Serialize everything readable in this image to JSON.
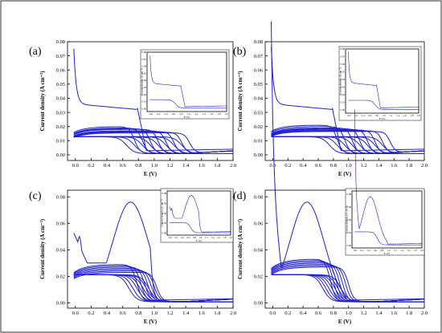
{
  "chart_data": [
    {
      "id": "a",
      "type": "line",
      "panel_label": "(a)",
      "xlabel": "E (V)",
      "ylabel": "Current density (A cm⁻²)",
      "xlim": [
        -0.1,
        2.0
      ],
      "ylim": [
        -0.004,
        0.08
      ],
      "x_ticks": [
        "0.0",
        "0.2",
        "0.4",
        "0.6",
        "0.8",
        "1.0",
        "1.2",
        "1.4",
        "1.6",
        "1.8",
        "2.0"
      ],
      "y_ticks": [
        "0.00",
        "0.01",
        "0.02",
        "0.03",
        "0.04",
        "0.05",
        "0.06",
        "0.07",
        "0.08"
      ],
      "drop_potentials": [
        0.75,
        0.85,
        0.95,
        1.05,
        1.15,
        1.25,
        1.35,
        1.45
      ],
      "plateaus": [
        0.019,
        0.018,
        0.0175,
        0.017,
        0.016,
        0.0155,
        0.015,
        0.0145
      ],
      "first_scan": {
        "peak_x": 0.85,
        "peak_y": 0.034,
        "start_y": 0.075
      },
      "inset": {
        "x_ticks": [
          "0.0",
          "0.2",
          "0.4",
          "0.6",
          "0.8",
          "1.0",
          "1.2",
          "1.4",
          "1.6",
          "1.8",
          "2.0"
        ],
        "y_ticks": [
          "0.00",
          "0.01",
          "0.02",
          "0.03",
          "0.04",
          "0.05",
          "0.06",
          "0.07",
          "0.08"
        ],
        "xlabel": "E (V)",
        "ylabel": "Current density (A cm⁻²)"
      }
    },
    {
      "id": "b",
      "type": "line",
      "panel_label": "(b)",
      "xlabel": "E (V)",
      "ylabel": "Current density (A cm⁻²)",
      "xlim": [
        -0.1,
        2.0
      ],
      "ylim": [
        -0.004,
        0.08
      ],
      "x_ticks": [
        "0.0",
        "0.2",
        "0.4",
        "0.6",
        "0.8",
        "1.0",
        "1.2",
        "1.4",
        "1.6",
        "1.8",
        "2.0"
      ],
      "y_ticks": [
        "0.00",
        "0.01",
        "0.02",
        "0.03",
        "0.04",
        "0.05",
        "0.06",
        "0.07",
        "0.08"
      ],
      "drop_potentials": [
        0.85,
        0.95,
        1.05,
        1.15,
        1.25,
        1.35,
        1.45,
        1.55
      ],
      "plateaus": [
        0.02,
        0.019,
        0.018,
        0.0175,
        0.017,
        0.0165,
        0.016,
        0.0155
      ],
      "first_scan": {
        "peak_x": 0.85,
        "peak_y": 0.032,
        "start_y": 0.076
      },
      "inset": {
        "x_ticks": [
          "0.0",
          "0.2",
          "0.4",
          "0.6",
          "0.8",
          "1.0",
          "1.2",
          "1.4",
          "1.6",
          "1.8",
          "2.0"
        ],
        "y_ticks": [
          "0.00",
          "0.01",
          "0.02",
          "0.03",
          "0.04",
          "0.05",
          "0.06",
          "0.07",
          "0.08"
        ],
        "xlabel": "E (V)",
        "ylabel": "Current density (A cm⁻²)"
      }
    },
    {
      "id": "c",
      "type": "line",
      "panel_label": "(c)",
      "xlabel": "E (V)",
      "ylabel": "Current density (A cm⁻²)",
      "xlim": [
        -0.1,
        2.0
      ],
      "ylim": [
        -0.004,
        0.085
      ],
      "x_ticks": [
        "0.0",
        "0.2",
        "0.4",
        "0.6",
        "0.8",
        "1.0",
        "1.2",
        "1.4",
        "1.6",
        "1.8",
        "2.0"
      ],
      "y_ticks": [
        "0.00",
        "0.02",
        "0.04",
        "0.06",
        "0.08"
      ],
      "drop_potentials": [
        0.78,
        0.83,
        0.88,
        0.92,
        0.96,
        1.0,
        1.03
      ],
      "plateaus": [
        0.028,
        0.027,
        0.026,
        0.025,
        0.024,
        0.023,
        0.022
      ],
      "first_scan": {
        "peak_x": 0.7,
        "peak_y": 0.076,
        "start_y": 0.055
      },
      "inset": {
        "x_ticks": [
          "0.0",
          "0.2",
          "0.4",
          "0.6",
          "0.8",
          "1.0",
          "1.2",
          "1.4",
          "1.6",
          "1.8",
          "2.0"
        ],
        "y_ticks": [
          "0.00",
          "0.02",
          "0.04",
          "0.06",
          "0.08"
        ],
        "xlabel": "E (V)",
        "ylabel": "Current density (A cm⁻²)"
      }
    },
    {
      "id": "d",
      "type": "line",
      "panel_label": "(d)",
      "xlabel": "E (V)",
      "ylabel": "Current density (A cm⁻²)",
      "xlim": [
        -0.1,
        2.0
      ],
      "ylim": [
        -0.004,
        0.085
      ],
      "x_ticks": [
        "0.0",
        "0.2",
        "0.4",
        "0.6",
        "0.8",
        "1.0",
        "1.2",
        "1.4",
        "1.6",
        "1.8",
        "2.0"
      ],
      "y_ticks": [
        "0.00",
        "0.02",
        "0.04",
        "0.06",
        "0.08"
      ],
      "drop_potentials": [
        0.76,
        0.8,
        0.84,
        0.88,
        0.92,
        0.96,
        1.0
      ],
      "plateaus": [
        0.032,
        0.031,
        0.03,
        0.029,
        0.028,
        0.027,
        0.026
      ],
      "first_scan": {
        "peak_x": 0.45,
        "peak_y": 0.076,
        "start_y": 0.079
      },
      "inset": {
        "x_ticks": [
          "0.0",
          "0.2",
          "0.4",
          "0.6",
          "0.8",
          "1.0",
          "1.2",
          "1.4",
          "1.6",
          "1.8",
          "2.0"
        ],
        "y_ticks": [
          "0.00",
          "0.02",
          "0.04",
          "0.06",
          "0.08"
        ],
        "xlabel": "E (V)",
        "ylabel": "Current density (A cm⁻²)"
      }
    }
  ],
  "colors": {
    "curve": "#1f1fd6",
    "frame": "#000000",
    "background": "#ffffff"
  }
}
